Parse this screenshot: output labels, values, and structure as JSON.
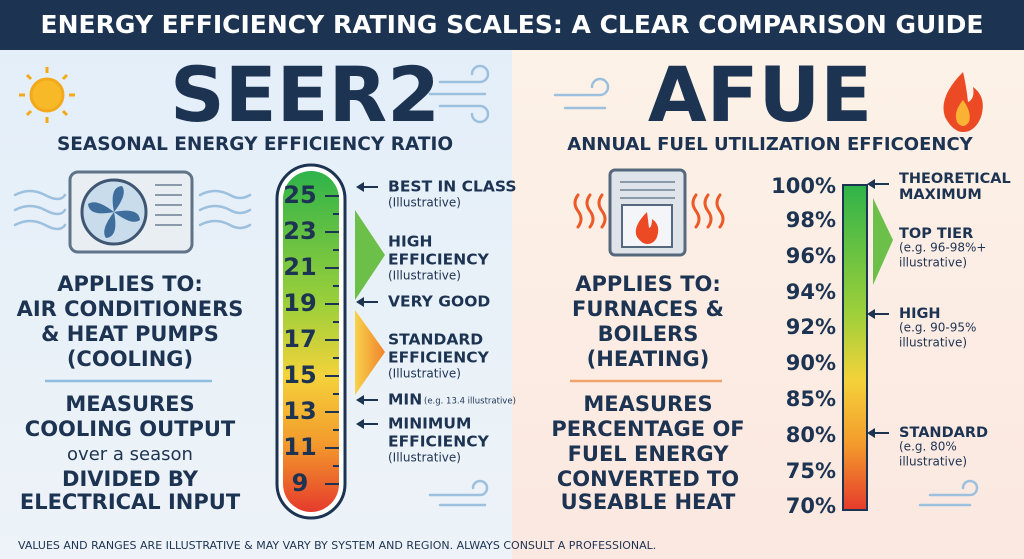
{
  "header": {
    "title": "ENERGY EFFICIENCY RATING SCALES: A CLEAR COMPARISON GUIDE"
  },
  "seer2": {
    "title": "SEER2",
    "subtitle": "SEASONAL ENERGY EFFICIENCY RATIO",
    "applies_to": [
      "APPLIES TO:",
      "AIR CONDITIONERS",
      "& HEAT PUMPS",
      "(COOLING)"
    ],
    "measures": [
      "MEASURES",
      "COOLING OUTPUT",
      "over a season",
      "DIVIDED BY",
      "ELECTRICAL INPUT"
    ],
    "scale": [
      "25",
      "23",
      "21",
      "19",
      "17",
      "15",
      "13",
      "11",
      "9"
    ],
    "annotations": [
      {
        "lines": [
          "BEST IN CLASS"
        ],
        "note": [
          "(Illustrative)"
        ]
      },
      {
        "lines": [
          "HIGH",
          "EFFICIENCY"
        ],
        "note": [
          "(Illustrative)"
        ]
      },
      {
        "lines": [
          "VERY GOOD"
        ]
      },
      {
        "lines": [
          "STANDARD",
          "EFFICIENCY"
        ],
        "note": [
          "(Illustrative)"
        ]
      },
      {
        "lines": [
          "MIN"
        ],
        "note": [
          "(e.g. 13.4 illustrative)"
        ]
      },
      {
        "lines": [
          "MINIMUM",
          "EFFICIENCY"
        ],
        "note": [
          "(Illustrative)"
        ]
      }
    ]
  },
  "afue": {
    "title": "AFUE",
    "subtitle": "ANNUAL FUEL UTILIZATION EFFICOENCY",
    "applies_to": [
      "APPLIES TO:",
      "FURNACES &",
      "BOILERS",
      "(HEATING)"
    ],
    "measures": [
      "MEASURES",
      "PERCENTAGE OF",
      "FUEL ENERGY",
      "CONVERTED TO",
      "USEABLE HEAT"
    ],
    "scale": [
      "100%",
      "98%",
      "96%",
      "94%",
      "92%",
      "90%",
      "85%",
      "80%",
      "75%",
      "70%"
    ],
    "annotations": [
      {
        "lines": [
          "THEORETICAL",
          "MAXIMUM"
        ]
      },
      {
        "lines": [
          "TOP TIER"
        ],
        "note": [
          "(e.g. 96-98%+",
          "illustrative)"
        ]
      },
      {
        "lines": [
          "HIGH"
        ],
        "note": [
          "(e.g. 90-95%",
          "illustrative)"
        ]
      },
      {
        "lines": [
          "STANDARD"
        ],
        "note": [
          "(e.g. 80%",
          "illustrative)"
        ]
      }
    ]
  },
  "footer": {
    "note": "VALUES AND RANGES ARE ILLUSTRATIVE & MAY VARY BY SYSTEM AND REGION. ALWAYS CONSULT A PROFESSIONAL."
  }
}
